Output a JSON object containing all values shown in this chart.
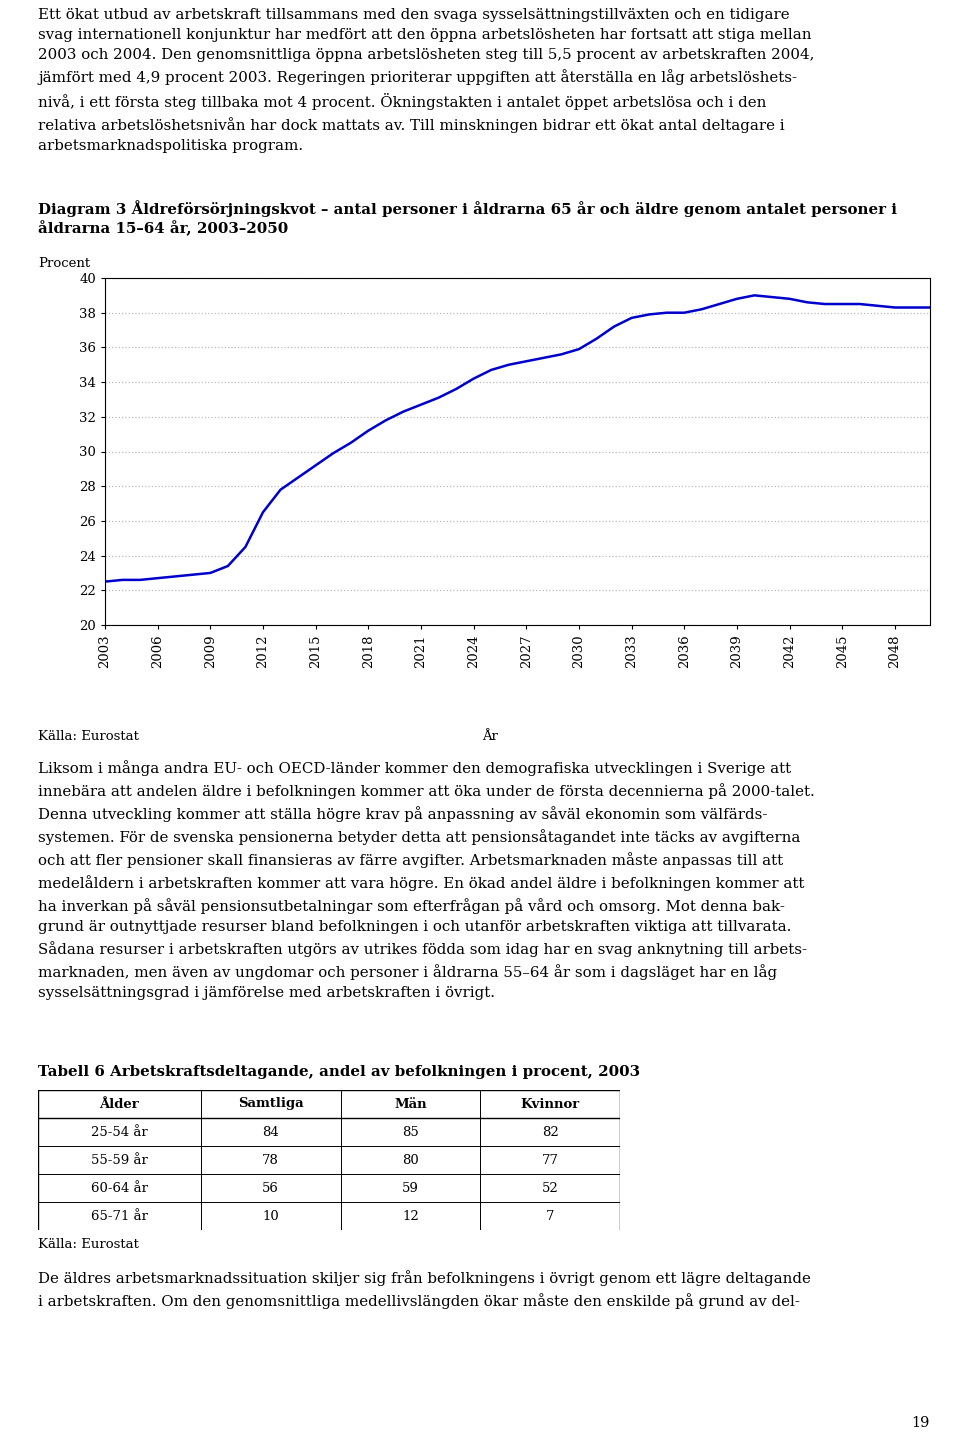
{
  "text_top": "Ett ökat utbud av arbetskraft tillsammans med den svaga sysselsättningstillväxten och en tidigare\nsvag internationell konjunktur har medfört att den öppna arbetslösheten har fortsatt att stiga mellan\n2003 och 2004. Den genomsnittliga öppna arbetslösheten steg till 5,5 procent av arbetskraften 2004,\njämfört med 4,9 procent 2003. Regeringen prioriterar uppgiften att återställa en låg arbetslöshets-\nnivå, i ett första steg tillbaka mot 4 procent. Ökningstakten i antalet öppet arbetslösa och i den\nrelativa arbetslöshetsnivån har dock mattats av. Till minskningen bidrar ett ökat antal deltagare i\narbetsmarknadspolitiska program.",
  "diagram_title_line1": "Diagram 3 Åldreförsörjningskvot – antal personer i åldrarna 65 år och äldre genom antalet personer i",
  "diagram_title_line2": "åldrarna 15–64 år, 2003–2050",
  "ylabel": "Procent",
  "xlabel": "År",
  "source_label": "Källa: Eurostat",
  "ylim": [
    20,
    40
  ],
  "yticks": [
    20,
    22,
    24,
    26,
    28,
    30,
    32,
    34,
    36,
    38,
    40
  ],
  "years": [
    2003,
    2004,
    2005,
    2006,
    2007,
    2008,
    2009,
    2010,
    2011,
    2012,
    2013,
    2014,
    2015,
    2016,
    2017,
    2018,
    2019,
    2020,
    2021,
    2022,
    2023,
    2024,
    2025,
    2026,
    2027,
    2028,
    2029,
    2030,
    2031,
    2032,
    2033,
    2034,
    2035,
    2036,
    2037,
    2038,
    2039,
    2040,
    2041,
    2042,
    2043,
    2044,
    2045,
    2046,
    2047,
    2048,
    2049,
    2050
  ],
  "values": [
    22.5,
    22.6,
    22.6,
    22.7,
    22.8,
    22.9,
    23.0,
    23.4,
    24.5,
    26.5,
    27.8,
    28.5,
    29.2,
    29.9,
    30.5,
    31.2,
    31.8,
    32.3,
    32.7,
    33.1,
    33.6,
    34.2,
    34.7,
    35.0,
    35.2,
    35.4,
    35.6,
    35.9,
    36.5,
    37.2,
    37.7,
    37.9,
    38.0,
    38.0,
    38.2,
    38.5,
    38.8,
    39.0,
    38.9,
    38.8,
    38.6,
    38.5,
    38.5,
    38.5,
    38.4,
    38.3,
    38.3,
    38.3
  ],
  "line_color": "#0000CC",
  "grid_color": "#BBBBBB",
  "text_below_chart": "Liksom i många andra EU- och OECD-länder kommer den demografiska utvecklingen i Sverige att\ninnebära att andelen äldre i befolkningen kommer att öka under de första decennierna på 2000-talet.\nDenna utveckling kommer att ställa högre krav på anpassning av såväl ekonomin som välfärds-\nsystemen. För de svenska pensionerna betyder detta att pensionsåtagandet inte täcks av avgifterna\noch att fler pensioner skall finansieras av färre avgifter. Arbetsmarknaden måste anpassas till att\nmedelåldern i arbetskraften kommer att vara högre. En ökad andel äldre i befolkningen kommer att\nha inverkan på såväl pensionsutbetalningar som efterfrågan på vård och omsorg. Mot denna bak-\ngrund är outnyttjade resurser bland befolkningen i och utanför arbetskraften viktiga att tillvarata.\nSådana resurser i arbetskraften utgörs av utrikes födda som idag har en svag anknytning till arbets-\nmarknaden, men även av ungdomar och personer i åldrarna 55–64 år som i dagsläget har en låg\nsysselsättningsgrad i jämförelse med arbetskraften i övrigt.",
  "table_title": "Tabell 6 Arbetskraftsdeltagande, andel av befolkningen i procent, 2003",
  "table_headers": [
    "Ålder",
    "Samtliga",
    "Män",
    "Kvinnor"
  ],
  "table_rows": [
    [
      "25-54 år",
      "84",
      "85",
      "82"
    ],
    [
      "55-59 år",
      "78",
      "80",
      "77"
    ],
    [
      "60-64 år",
      "56",
      "59",
      "52"
    ],
    [
      "65-71 år",
      "10",
      "12",
      "7"
    ]
  ],
  "table_source": "Källa: Eurostat",
  "text_bottom": "De äldres arbetsmarknadssituation skiljer sig från befolkningens i övrigt genom ett lägre deltagande\ni arbetskraften. Om den genomsnittliga medellivslängden ökar måste den enskilde på grund av del-",
  "page_number": "19",
  "xtick_years": [
    2003,
    2006,
    2009,
    2012,
    2015,
    2018,
    2021,
    2024,
    2027,
    2030,
    2033,
    2036,
    2039,
    2042,
    2045,
    2048
  ]
}
